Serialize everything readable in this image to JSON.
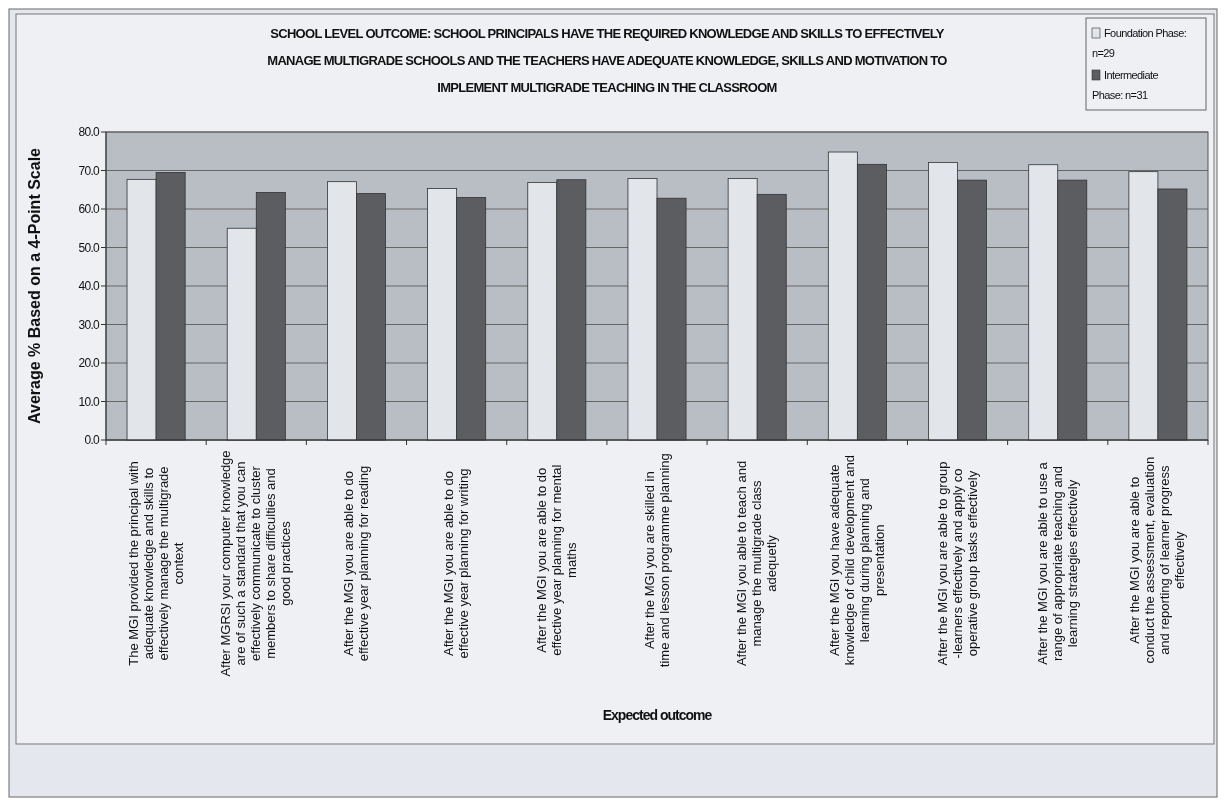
{
  "chart_data": {
    "type": "bar",
    "title": "SCHOOL LEVEL OUTCOME: SCHOOL PRINCIPALS HAVE THE REQUIRED KNOWLEDGE AND SKILLS TO EFFECTIVELY MANAGE MULTIGRADE SCHOOLS AND THE TEACHERS HAVE ADEQUATE KNOWLEDGE, SKILLS AND MOTIVATION TO IMPLEMENT MULTIGRADE TEACHING IN THE CLASSROOM",
    "xlabel": "Expected outcome",
    "ylabel": "Average % Based on a 4-Point Scale",
    "categories": [
      "The MGI provided the principal with adequate knowledge and skills to effectively manage the multigrade context",
      "After MGRSI your computer knowledge are of such a standard that you can effectively communicate to cluster members to share difficulties and good practices",
      "After the MGI you are able to do effective year planning for reading",
      "After the MGI you are able to do effective year planning for writing",
      "After the MGI you are able to do effective year planning for mental maths",
      "After the MGI you are skilled in time and lesson programme planning",
      "After the MGI you able to teach and manage the multigrade class adequetly",
      "After the MGI you have adequate knowledge of child development and learning during planning and presentation",
      "After the MGI you are able to group -learners effectively and apply co operative group tasks effectively",
      "After the MGI you are able to use a range of appropriate teaching and learning strategies effectively",
      "After the MGI you are able to conduct the assessment, evaluation and reporting of learner progress effectively"
    ],
    "series": [
      {
        "name": "Foundation Phase: n=29",
        "color": "#e2e5ea",
        "values": [
          67.7,
          55.0,
          67.1,
          65.3,
          66.9,
          67.9,
          67.9,
          74.8,
          72.1,
          71.5,
          69.7
        ]
      },
      {
        "name": "Intermediate Phase: n=31",
        "color": "#5b5d61",
        "values": [
          69.5,
          64.3,
          64.0,
          63.0,
          67.6,
          62.8,
          63.8,
          71.6,
          67.5,
          67.5,
          65.2
        ]
      }
    ],
    "ylim": [
      0,
      80
    ],
    "yticks": [
      {
        "value": 0,
        "label": "0.0"
      },
      {
        "value": 10,
        "label": "10.0"
      },
      {
        "value": 20,
        "label": "20.0"
      },
      {
        "value": 30,
        "label": "30.0"
      },
      {
        "value": 40,
        "label": "40.0"
      },
      {
        "value": 50,
        "label": "50.0"
      },
      {
        "value": 60,
        "label": "60.0"
      },
      {
        "value": 70,
        "label": "70.0"
      },
      {
        "value": 80,
        "label": "80.0"
      }
    ],
    "grid": "y",
    "legend": "top right"
  }
}
